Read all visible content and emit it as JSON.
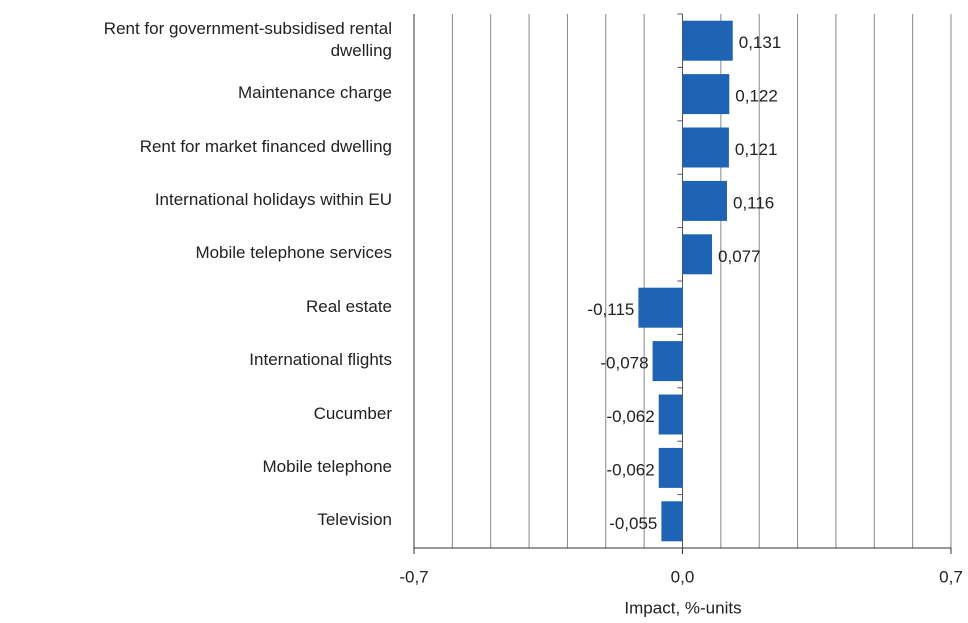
{
  "chart_data": {
    "type": "barh",
    "categories": [
      "Rent for government-subsidised rental dwelling",
      "Maintenance charge",
      "Rent for market financed dwelling",
      "International holidays within EU",
      "Mobile telephone services",
      "Real estate",
      "International flights",
      "Cucumber",
      "Mobile telephone",
      "Television"
    ],
    "values": [
      0.131,
      0.122,
      0.121,
      0.116,
      0.077,
      -0.115,
      -0.078,
      -0.062,
      -0.062,
      -0.055
    ],
    "value_labels": [
      "0,131",
      "0,122",
      "0,121",
      "0,116",
      "0,077",
      "-0,115",
      "-0,078",
      "-0,062",
      "-0,062",
      "-0,055"
    ],
    "color": "#1f63b4",
    "xlabel": "Impact, %-units",
    "xlim": [
      -0.7,
      0.7
    ],
    "xticks": [
      {
        "value": -0.7,
        "label": "-0,7"
      },
      {
        "value": 0,
        "label": "0,0"
      },
      {
        "value": 0.7,
        "label": "0,7"
      }
    ],
    "xgrid": [
      -0.6,
      -0.5,
      -0.4,
      -0.3,
      -0.2,
      -0.1,
      0.1,
      0.2,
      0.3,
      0.4,
      0.5,
      0.6,
      0.7
    ]
  }
}
